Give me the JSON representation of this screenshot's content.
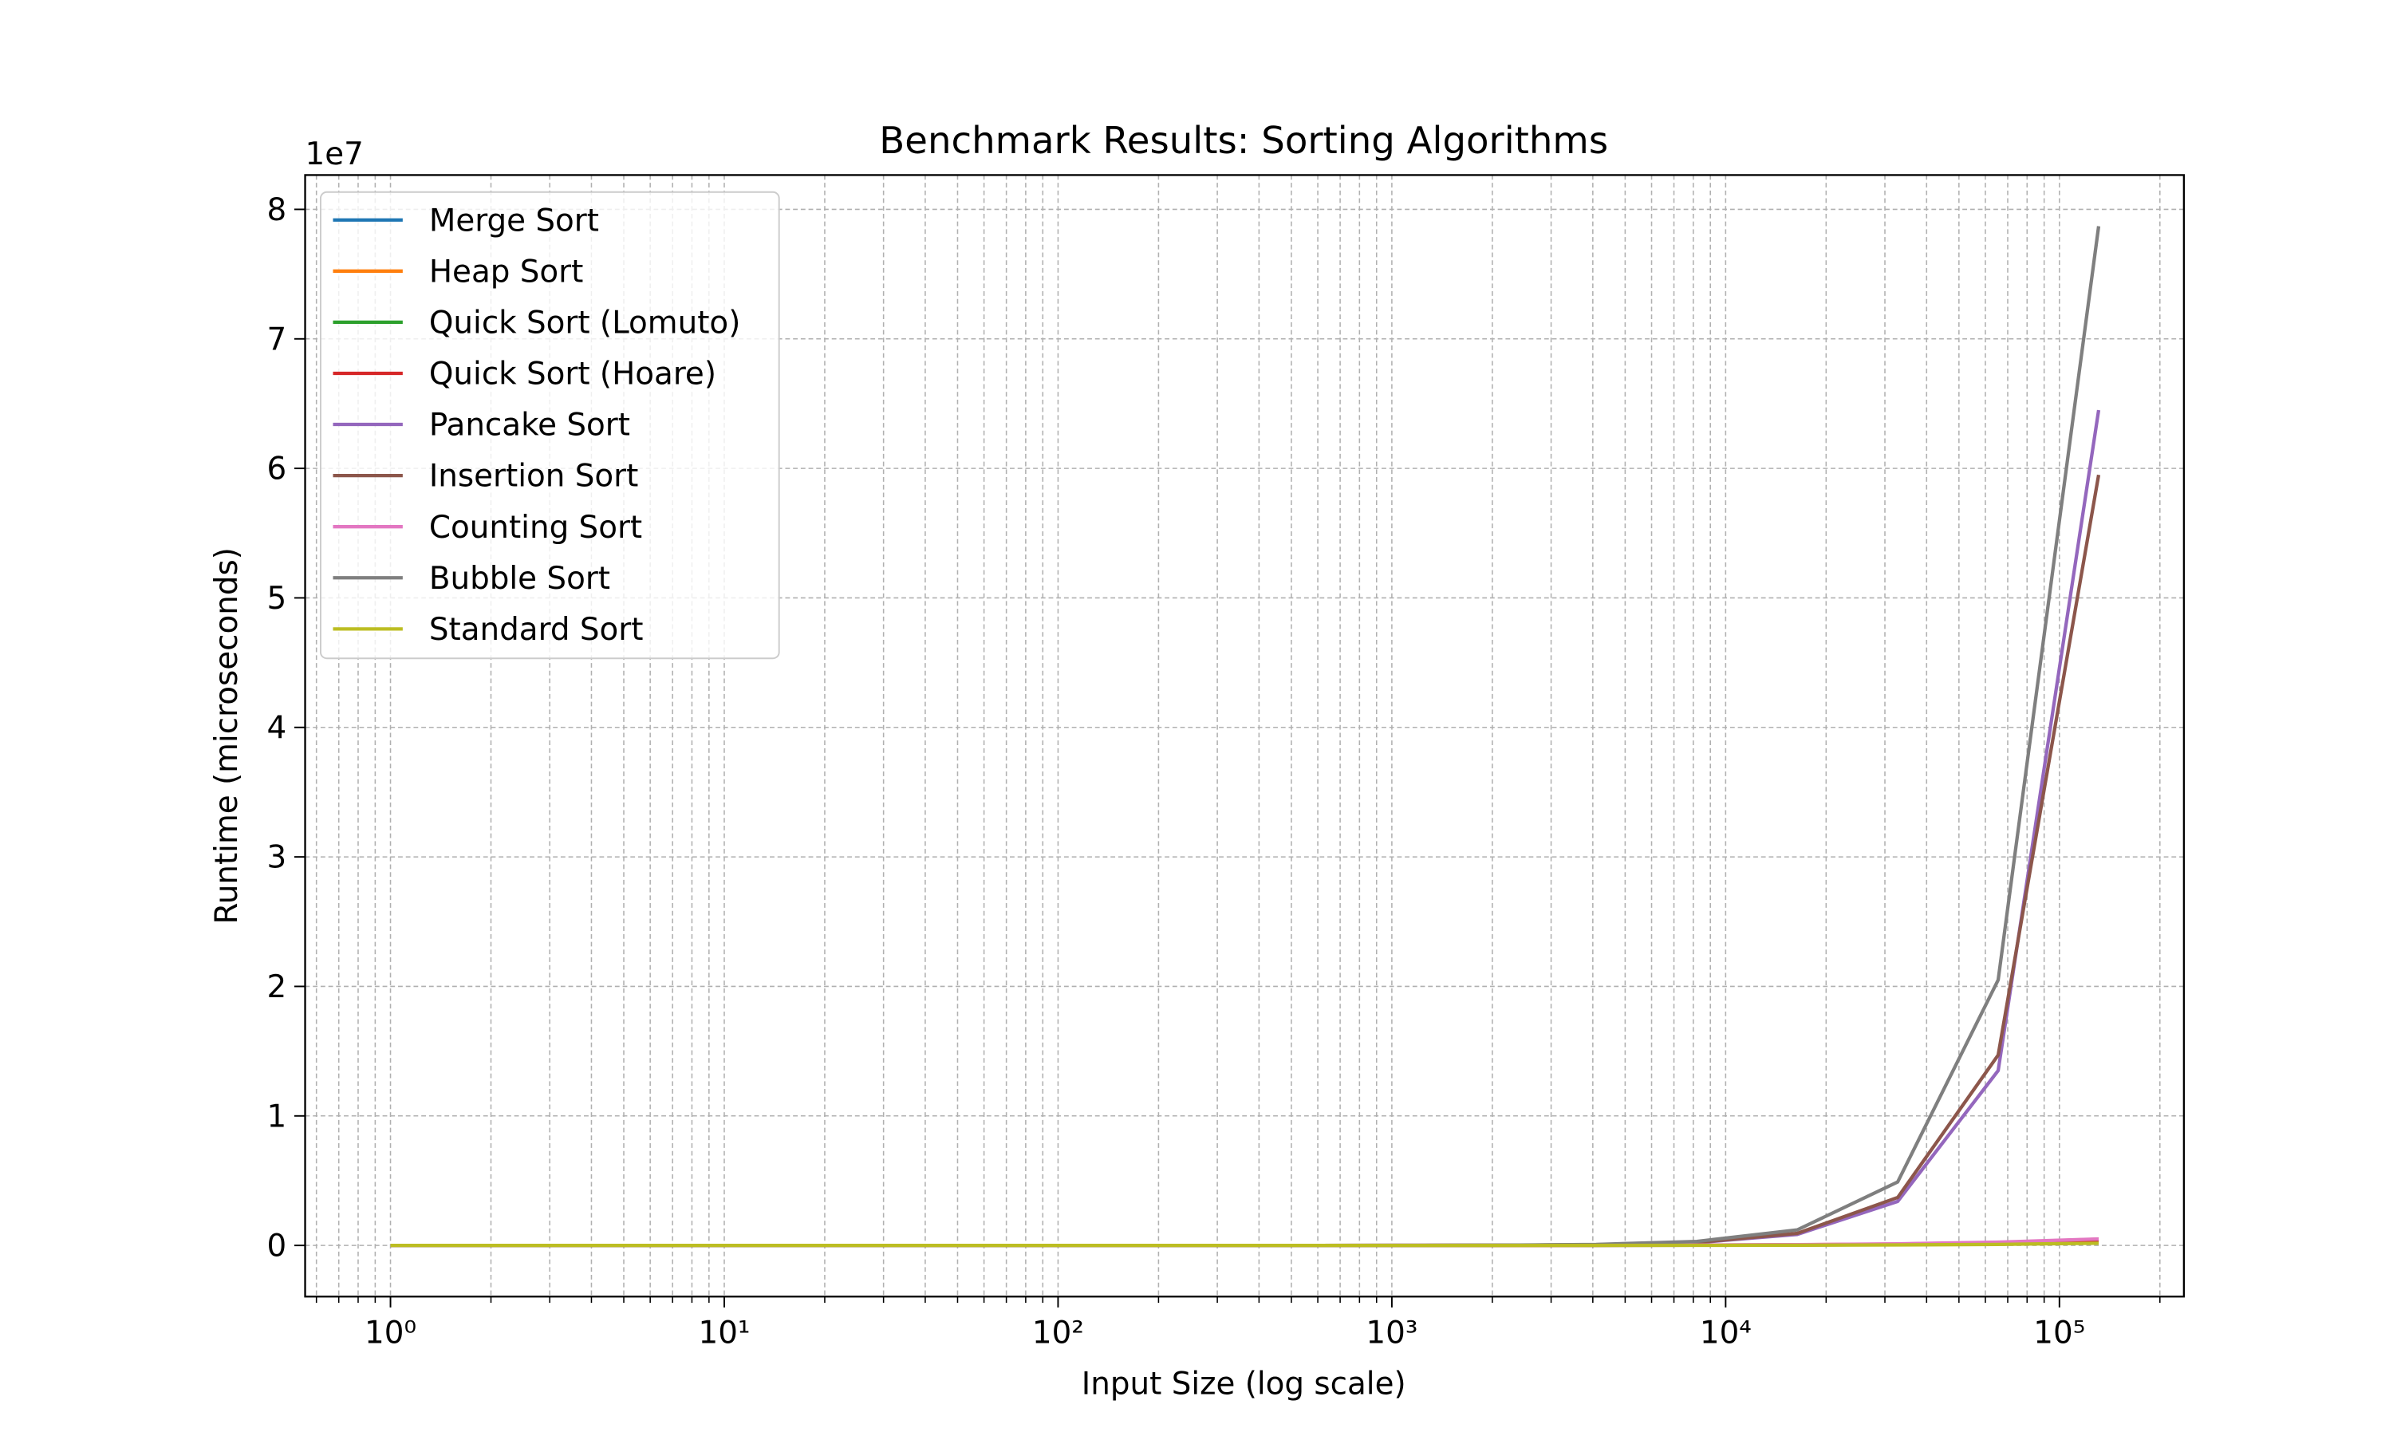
{
  "chart_data": {
    "type": "line",
    "title": "Benchmark Results: Sorting Algorithms",
    "xlabel": "Input Size (log scale)",
    "ylabel": "Runtime (microseconds)",
    "y_offset_label": "1e7",
    "xscale": "log",
    "grid": true,
    "legend": "upper left",
    "x": [
      1,
      2,
      4,
      8,
      16,
      32,
      64,
      128,
      256,
      512,
      1024,
      2048,
      4096,
      8192,
      16384,
      32768,
      65536,
      131072
    ],
    "xlim": [
      0.555,
      236000
    ],
    "xticks": [
      {
        "value": 1,
        "label": "10⁰"
      },
      {
        "value": 10,
        "label": "10¹"
      },
      {
        "value": 100,
        "label": "10²"
      },
      {
        "value": 1000,
        "label": "10³"
      },
      {
        "value": 10000,
        "label": "10⁴"
      },
      {
        "value": 100000,
        "label": "10⁵"
      }
    ],
    "xminorticks": [
      0.6,
      0.7,
      0.8,
      0.9,
      2,
      3,
      4,
      5,
      6,
      7,
      8,
      9,
      20,
      30,
      40,
      50,
      60,
      70,
      80,
      90,
      200,
      300,
      400,
      500,
      600,
      700,
      800,
      900,
      2000,
      3000,
      4000,
      5000,
      6000,
      7000,
      8000,
      9000,
      20000,
      30000,
      40000,
      50000,
      60000,
      70000,
      80000,
      90000,
      200000
    ],
    "ylim": [
      -3950000,
      82650000
    ],
    "yticks": [
      {
        "value": 0,
        "label": "0"
      },
      {
        "value": 10000000,
        "label": "1"
      },
      {
        "value": 20000000,
        "label": "2"
      },
      {
        "value": 30000000,
        "label": "3"
      },
      {
        "value": 40000000,
        "label": "4"
      },
      {
        "value": 50000000,
        "label": "5"
      },
      {
        "value": 60000000,
        "label": "6"
      },
      {
        "value": 70000000,
        "label": "7"
      },
      {
        "value": 80000000,
        "label": "8"
      }
    ],
    "series": [
      {
        "name": "Merge Sort",
        "color": "#1f77b4",
        "values": [
          1,
          2,
          4,
          9,
          20,
          45,
          100,
          220,
          480,
          1000,
          2200,
          4700,
          10000,
          21000,
          44000,
          92000,
          190000,
          400000
        ]
      },
      {
        "name": "Heap Sort",
        "color": "#ff7f0e",
        "values": [
          1,
          2,
          5,
          11,
          24,
          54,
          120,
          260,
          570,
          1200,
          2600,
          5600,
          12000,
          25000,
          53000,
          110000,
          230000,
          480000
        ]
      },
      {
        "name": "Quick Sort (Lomuto)",
        "color": "#2ca02c",
        "values": [
          1,
          2,
          3,
          7,
          16,
          36,
          80,
          175,
          380,
          820,
          1750,
          3700,
          7900,
          16500,
          35000,
          73000,
          150000,
          310000
        ]
      },
      {
        "name": "Quick Sort (Hoare)",
        "color": "#d62728",
        "values": [
          1,
          1,
          3,
          6,
          13,
          29,
          64,
          140,
          300,
          650,
          1400,
          3000,
          6300,
          13000,
          28000,
          58000,
          110000,
          240000
        ]
      },
      {
        "name": "Pancake Sort",
        "color": "#9467bd",
        "values": [
          1,
          1,
          1,
          1,
          2,
          5,
          16,
          62,
          240,
          930,
          3700,
          14000,
          55000,
          215000,
          850000,
          3400000,
          13500000,
          64500000
        ]
      },
      {
        "name": "Insertion Sort",
        "color": "#8c564b",
        "values": [
          1,
          1,
          1,
          1,
          1,
          4,
          14,
          57,
          227,
          907,
          3600,
          14500,
          58000,
          232000,
          930000,
          3700000,
          14700000,
          59500000
        ]
      },
      {
        "name": "Counting Sort",
        "color": "#e377c2",
        "values": [
          4,
          8,
          15,
          30,
          61,
          122,
          243,
          486,
          973,
          1950,
          3900,
          7800,
          15600,
          31000,
          62000,
          125000,
          250000,
          500000
        ]
      },
      {
        "name": "Bubble Sort",
        "color": "#7f7f7f",
        "values": [
          1,
          1,
          1,
          1,
          2,
          5,
          19,
          75,
          301,
          1206,
          4823,
          19293,
          77172,
          308700,
          1200000,
          4900000,
          20500000,
          78700000
        ]
      },
      {
        "name": "Standard Sort",
        "color": "#bcbd22",
        "values": [
          1,
          1,
          2,
          4,
          8,
          18,
          40,
          88,
          190,
          410,
          880,
          1900,
          4000,
          8500,
          18000,
          38000,
          80000,
          170000
        ]
      }
    ]
  }
}
